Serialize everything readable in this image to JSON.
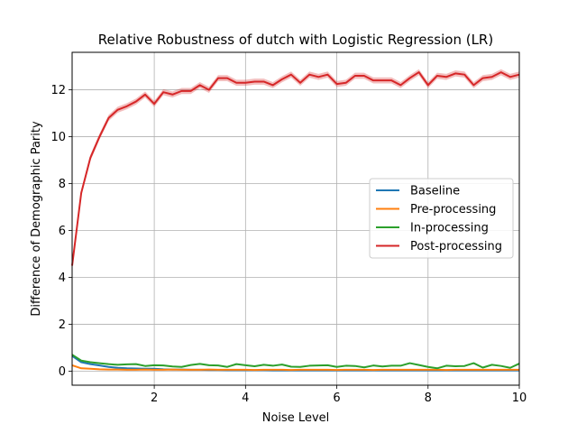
{
  "chart_data": {
    "type": "line",
    "title": "Relative Robustness of dutch with Logistic Regression (LR)",
    "xlabel": "Noise Level",
    "ylabel": "Difference of Demographic Parity",
    "xlim": [
      0.2,
      10
    ],
    "ylim": [
      -0.6,
      13.6
    ],
    "xticks": [
      2,
      4,
      6,
      8,
      10
    ],
    "yticks": [
      0,
      2,
      4,
      6,
      8,
      10,
      12
    ],
    "grid": true,
    "legend_position": "center-right",
    "x": [
      0.2,
      0.4,
      0.6,
      0.8,
      1.0,
      1.2,
      1.4,
      1.6,
      1.8,
      2.0,
      2.2,
      2.4,
      2.6,
      2.8,
      3.0,
      3.2,
      3.4,
      3.6,
      3.8,
      4.0,
      4.2,
      4.4,
      4.6,
      4.8,
      5.0,
      5.2,
      5.4,
      5.6,
      5.8,
      6.0,
      6.2,
      6.4,
      6.6,
      6.8,
      7.0,
      7.2,
      7.4,
      7.6,
      7.8,
      8.0,
      8.2,
      8.4,
      8.6,
      8.8,
      9.0,
      9.2,
      9.4,
      9.6,
      9.8,
      10.0
    ],
    "series": [
      {
        "name": "Baseline",
        "color": "#1f77b4",
        "values": [
          0.65,
          0.38,
          0.3,
          0.24,
          0.18,
          0.14,
          0.12,
          0.11,
          0.1,
          0.1,
          0.08,
          0.07,
          0.07,
          0.06,
          0.06,
          0.05,
          0.05,
          0.04,
          0.04,
          0.04,
          0.04,
          0.04,
          0.03,
          0.03,
          0.03,
          0.03,
          0.03,
          0.03,
          0.03,
          0.03,
          0.03,
          0.03,
          0.03,
          0.03,
          0.03,
          0.03,
          0.03,
          0.03,
          0.03,
          0.03,
          0.03,
          0.03,
          0.03,
          0.03,
          0.03,
          0.03,
          0.03,
          0.03,
          0.03,
          0.03
        ]
      },
      {
        "name": "Pre-processing",
        "color": "#ff7f0e",
        "values": [
          0.25,
          0.12,
          0.1,
          0.08,
          0.07,
          0.07,
          0.06,
          0.06,
          0.07,
          0.06,
          0.06,
          0.07,
          0.06,
          0.06,
          0.06,
          0.07,
          0.06,
          0.06,
          0.06,
          0.06,
          0.05,
          0.06,
          0.06,
          0.06,
          0.05,
          0.06,
          0.06,
          0.06,
          0.06,
          0.05,
          0.06,
          0.06,
          0.06,
          0.05,
          0.06,
          0.06,
          0.06,
          0.06,
          0.06,
          0.06,
          0.06,
          0.05,
          0.06,
          0.06,
          0.06,
          0.06,
          0.06,
          0.06,
          0.06,
          0.06
        ]
      },
      {
        "name": "In-processing",
        "color": "#2ca02c",
        "values": [
          0.7,
          0.45,
          0.38,
          0.34,
          0.3,
          0.27,
          0.29,
          0.3,
          0.22,
          0.25,
          0.24,
          0.2,
          0.18,
          0.26,
          0.31,
          0.25,
          0.24,
          0.18,
          0.3,
          0.25,
          0.21,
          0.27,
          0.23,
          0.28,
          0.19,
          0.18,
          0.23,
          0.24,
          0.25,
          0.18,
          0.23,
          0.22,
          0.16,
          0.24,
          0.2,
          0.23,
          0.23,
          0.34,
          0.26,
          0.18,
          0.12,
          0.23,
          0.21,
          0.22,
          0.34,
          0.15,
          0.27,
          0.22,
          0.14,
          0.32
        ]
      },
      {
        "name": "Post-processing",
        "color": "#d62728",
        "values": [
          4.5,
          7.6,
          9.1,
          10.0,
          10.8,
          11.15,
          11.3,
          11.5,
          11.8,
          11.4,
          11.9,
          11.8,
          11.95,
          11.95,
          12.2,
          12.0,
          12.5,
          12.5,
          12.3,
          12.3,
          12.35,
          12.35,
          12.2,
          12.45,
          12.65,
          12.3,
          12.65,
          12.55,
          12.65,
          12.25,
          12.3,
          12.6,
          12.6,
          12.4,
          12.4,
          12.4,
          12.2,
          12.5,
          12.75,
          12.2,
          12.6,
          12.55,
          12.7,
          12.65,
          12.2,
          12.5,
          12.55,
          12.75,
          12.55,
          12.65
        ]
      }
    ]
  }
}
